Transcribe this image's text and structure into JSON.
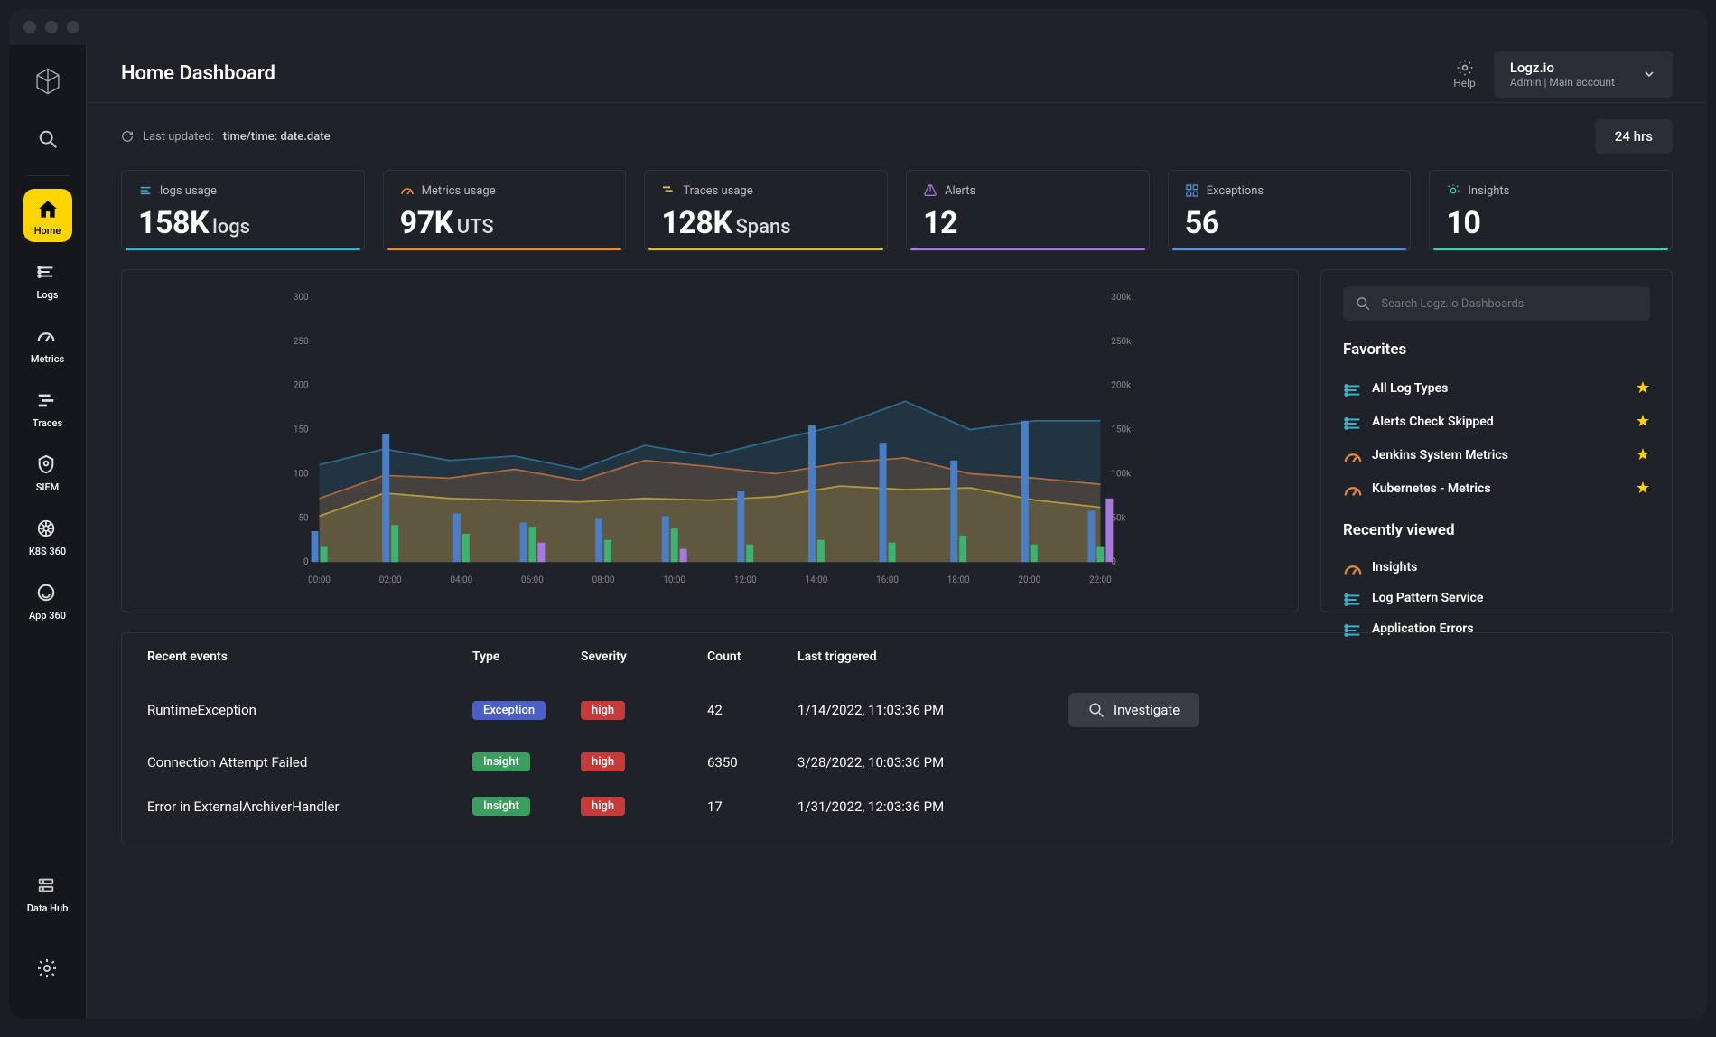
{
  "header": {
    "title": "Home Dashboard",
    "help": "Help",
    "account_name": "Logz.io",
    "account_sub": "Admin  |  Main account"
  },
  "subheader": {
    "last_updated_label": "Last updated:",
    "last_updated_value": "time/time: date.date",
    "time_range": "24 hrs"
  },
  "nav": [
    {
      "label": "Home",
      "icon": "home",
      "active": true
    },
    {
      "label": "Logs",
      "icon": "logs"
    },
    {
      "label": "Metrics",
      "icon": "metrics"
    },
    {
      "label": "Traces",
      "icon": "traces"
    },
    {
      "label": "SIEM",
      "icon": "siem"
    },
    {
      "label": "K8S 360",
      "icon": "k8s"
    },
    {
      "label": "App 360",
      "icon": "app360"
    }
  ],
  "nav_bottom": [
    {
      "label": "Data Hub",
      "icon": "datahub"
    },
    {
      "label": "",
      "icon": "gear"
    }
  ],
  "cards": [
    {
      "label": "logs usage",
      "value": "158K",
      "unit": "logs",
      "color": "#3bb0c9",
      "icon_color": "#3bb0c9"
    },
    {
      "label": "Metrics usage",
      "value": "97K",
      "unit": "UTS",
      "color": "#e08a3c",
      "icon_color": "#e08a3c"
    },
    {
      "label": "Traces usage",
      "value": "128K",
      "unit": "Spans",
      "color": "#d4b848",
      "icon_color": "#d4b848"
    },
    {
      "label": "Alerts",
      "value": "12",
      "unit": "",
      "color": "#a678e0",
      "icon_color": "#a678e0"
    },
    {
      "label": "Exceptions",
      "value": "56",
      "unit": "",
      "color": "#5a8fd6",
      "icon_color": "#5a8fd6"
    },
    {
      "label": "Insights",
      "value": "10",
      "unit": "",
      "color": "#48c9b0",
      "icon_color": "#48c9b0"
    }
  ],
  "chart": {
    "type": "combo-bar-area",
    "background": "#1f2229",
    "grid_color": "#2e323b",
    "left_axis": {
      "min": 0,
      "max": 300,
      "step": 50,
      "label_fontsize": 10,
      "label_color": "#888"
    },
    "right_axis": {
      "min": 0,
      "max": 300000,
      "step": 50000,
      "labels": [
        "0",
        "50k",
        "100k",
        "150k",
        "200k",
        "250k",
        "300k"
      ],
      "label_fontsize": 10,
      "label_color": "#888"
    },
    "x_labels": [
      "00:00",
      "02:00",
      "04:00",
      "06:00",
      "08:00",
      "10:00",
      "12:00",
      "14:00",
      "16:00",
      "18:00",
      "20:00",
      "22:00"
    ],
    "area_series": [
      {
        "name": "blue",
        "color": "#2d6a8a",
        "fill_opacity": 0.25,
        "values": [
          110,
          128,
          115,
          120,
          105,
          132,
          120,
          138,
          155,
          182,
          150,
          160,
          160
        ]
      },
      {
        "name": "orange",
        "color": "#b0683a",
        "fill_opacity": 0.25,
        "values": [
          72,
          98,
          95,
          105,
          92,
          115,
          108,
          100,
          112,
          118,
          100,
          95,
          88
        ]
      },
      {
        "name": "yellow",
        "color": "#b09a3a",
        "fill_opacity": 0.25,
        "values": [
          52,
          78,
          72,
          70,
          68,
          72,
          70,
          74,
          86,
          82,
          84,
          70,
          62
        ]
      }
    ],
    "bars": {
      "width": 8,
      "gap": 2,
      "groups": [
        {
          "blue": 35,
          "green": 18,
          "purple": 0
        },
        {
          "blue": 145,
          "green": 42,
          "purple": 0
        },
        {
          "blue": 55,
          "green": 32,
          "purple": 0
        },
        {
          "blue": 45,
          "green": 40,
          "purple": 22
        },
        {
          "blue": 50,
          "green": 25,
          "purple": 0
        },
        {
          "blue": 52,
          "green": 38,
          "purple": 15
        },
        {
          "blue": 80,
          "green": 20,
          "purple": 0
        },
        {
          "blue": 155,
          "green": 25,
          "purple": 0
        },
        {
          "blue": 135,
          "green": 22,
          "purple": 0
        },
        {
          "blue": 115,
          "green": 30,
          "purple": 0
        },
        {
          "blue": 160,
          "green": 20,
          "purple": 0
        },
        {
          "blue": 58,
          "green": 18,
          "purple": 72
        }
      ],
      "colors": {
        "blue": "#4a7fc8",
        "green": "#3cb371",
        "purple": "#a678e0"
      }
    }
  },
  "search_placeholder": "Search Logz.io Dashboards",
  "favorites_title": "Favorites",
  "favorites": [
    {
      "label": "All Log Types",
      "icon": "logs",
      "icon_color": "#3bb0c9",
      "starred": true
    },
    {
      "label": "Alerts Check Skipped",
      "icon": "logs",
      "icon_color": "#3bb0c9",
      "starred": true
    },
    {
      "label": "Jenkins System Metrics",
      "icon": "metrics",
      "icon_color": "#e08a3c",
      "starred": true
    },
    {
      "label": "Kubernetes - Metrics",
      "icon": "metrics",
      "icon_color": "#e08a3c",
      "starred": true
    }
  ],
  "recent_title": "Recently viewed",
  "recent": [
    {
      "label": "Insights",
      "icon": "metrics",
      "icon_color": "#e08a3c"
    },
    {
      "label": "Log Pattern Service",
      "icon": "logs",
      "icon_color": "#3bb0c9"
    },
    {
      "label": "Application Errors",
      "icon": "logs",
      "icon_color": "#3bb0c9"
    }
  ],
  "events": {
    "columns": [
      "Recent events",
      "Type",
      "Severity",
      "Count",
      "Last triggered"
    ],
    "investigate_label": "Investigate",
    "type_colors": {
      "Exception": "#4a5fc8",
      "Insight": "#3a9e5f"
    },
    "severity_colors": {
      "high": "#c83a3a"
    },
    "rows": [
      {
        "name": "RuntimeException",
        "type": "Exception",
        "severity": "high",
        "count": "42",
        "last": "1/14/2022, 11:03:36 PM",
        "investigate": true
      },
      {
        "name": "Connection Attempt Failed",
        "type": "Insight",
        "severity": "high",
        "count": "6350",
        "last": "3/28/2022, 10:03:36 PM"
      },
      {
        "name": "Error in ExternalArchiverHandler",
        "type": "Insight",
        "severity": "high",
        "count": "17",
        "last": "1/31/2022, 12:03:36 PM"
      }
    ]
  }
}
